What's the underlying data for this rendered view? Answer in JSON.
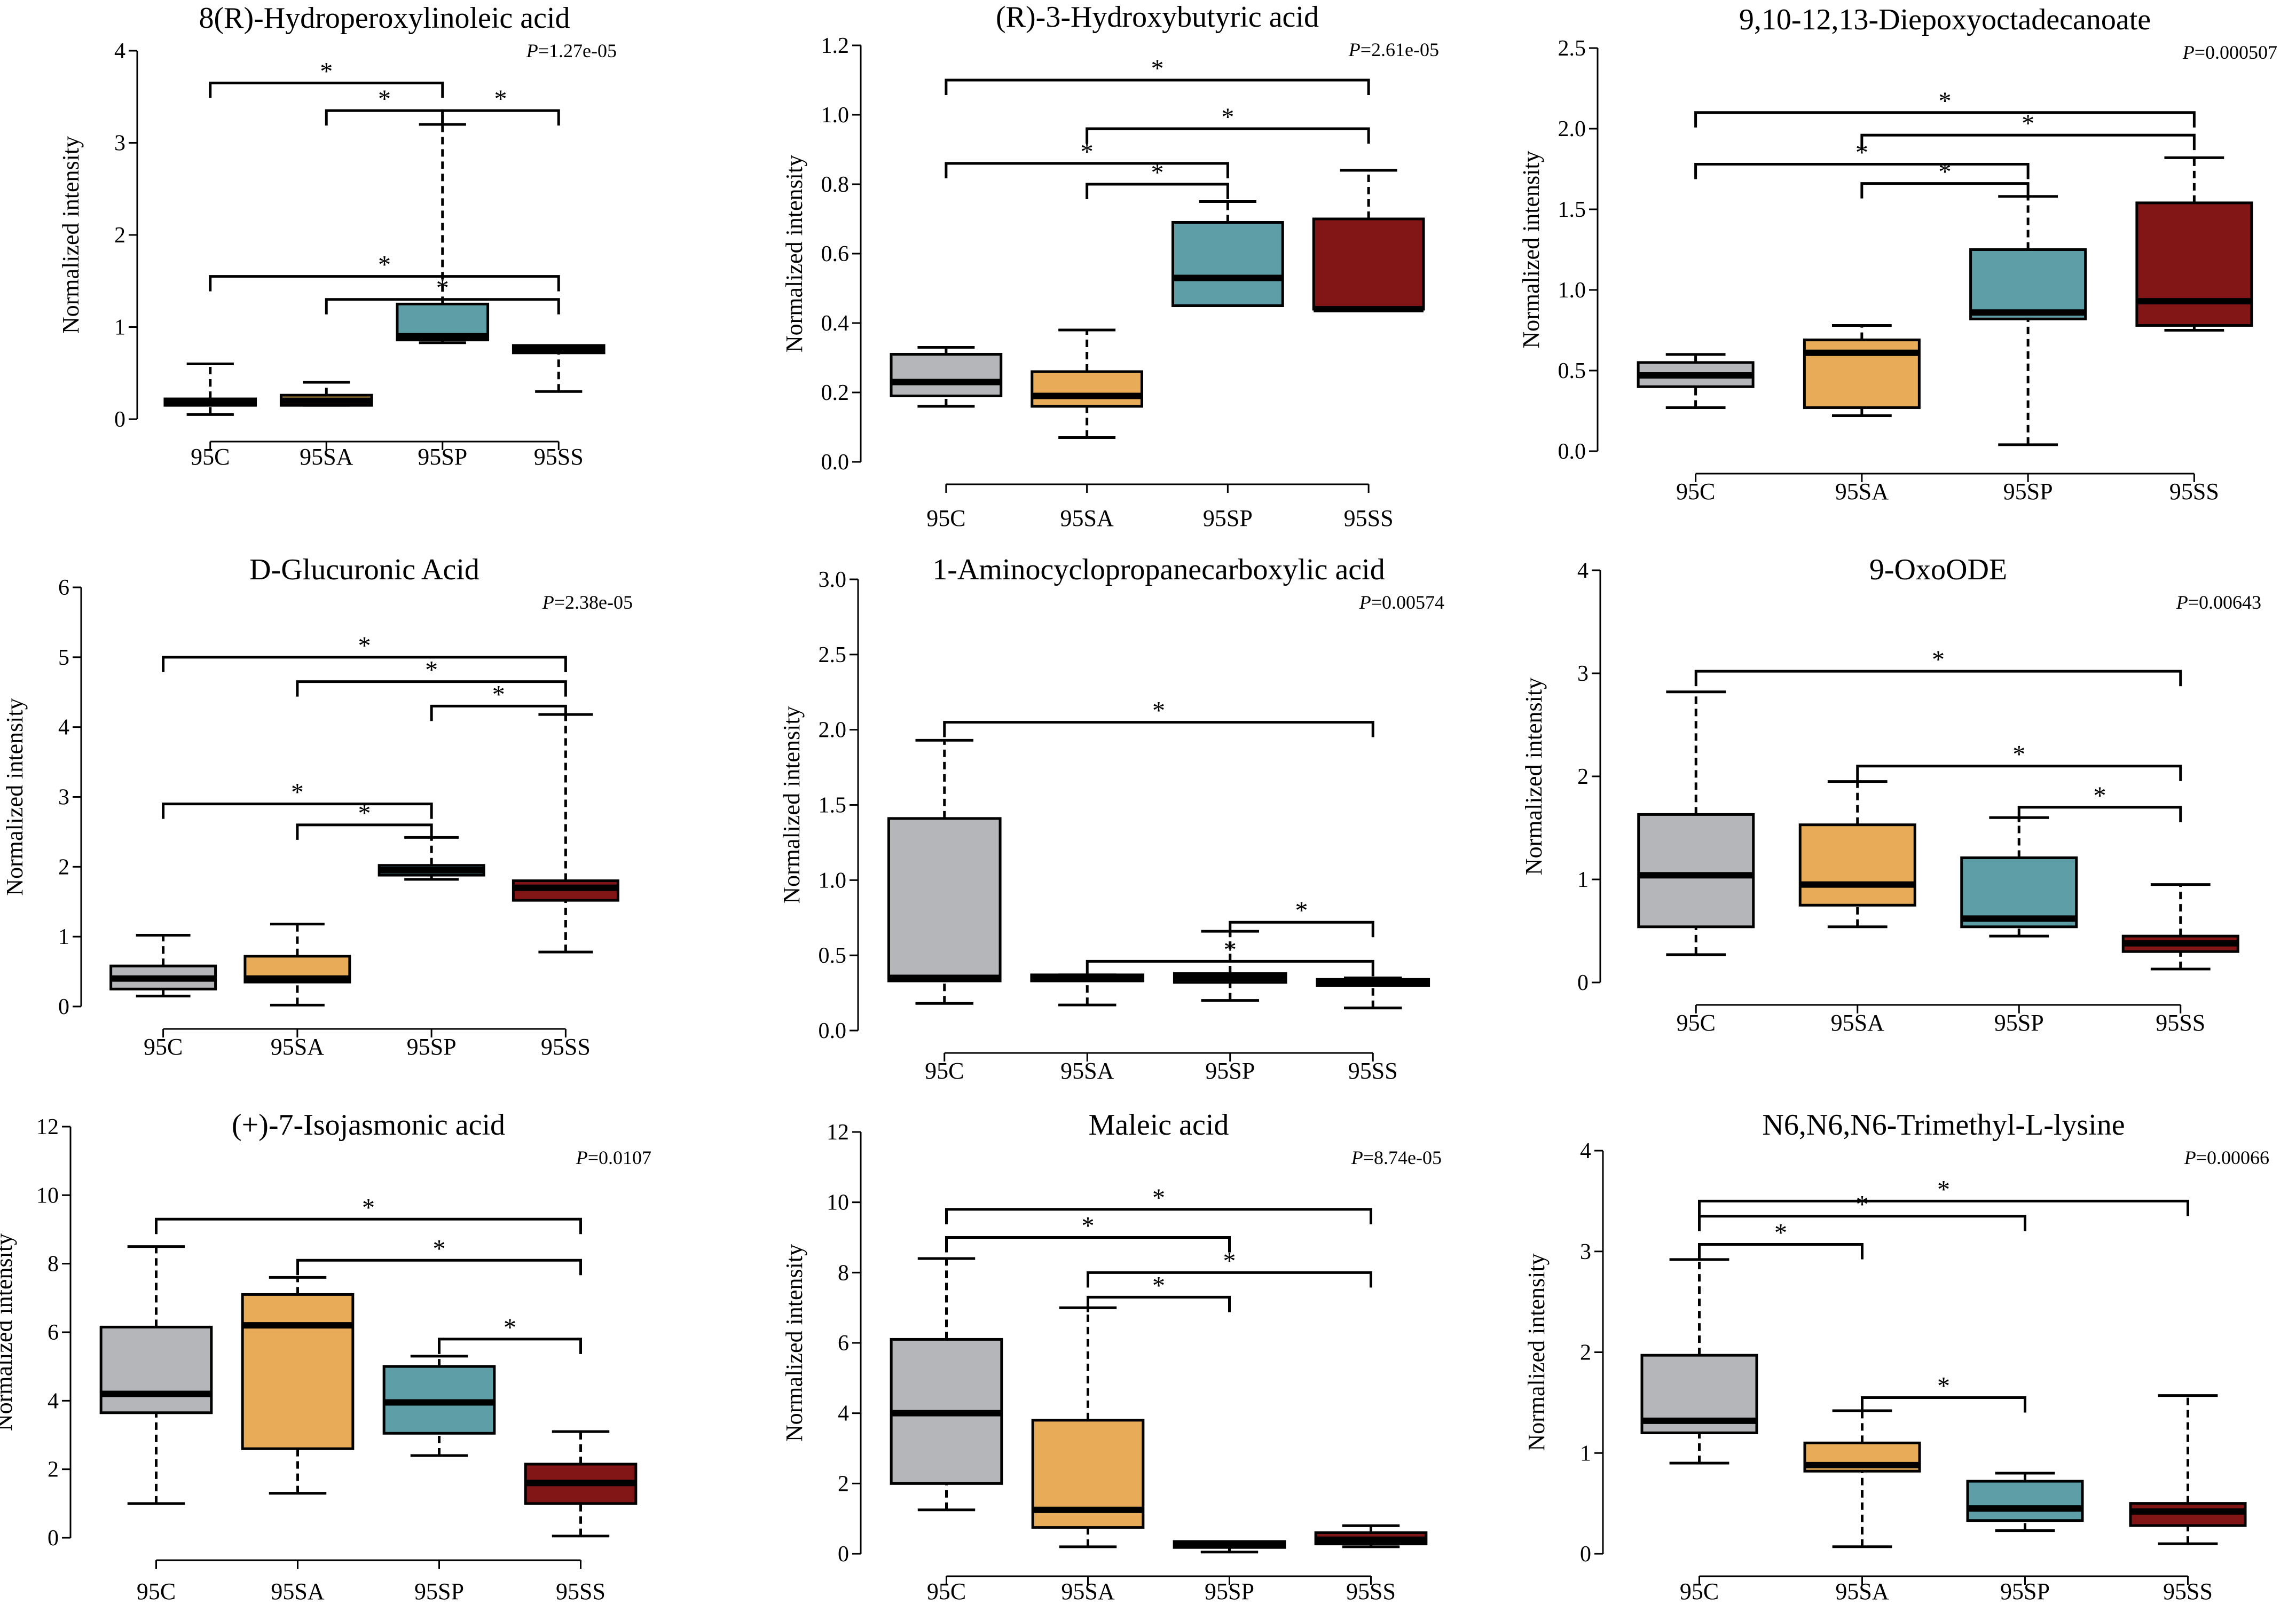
{
  "figure": {
    "groups": [
      "95C",
      "95SA",
      "95SP",
      "95SS"
    ],
    "colors": {
      "95C": "#b5b6ba",
      "95SA": "#e8ab57",
      "95SP": "#5e9ea6",
      "95SS": "#821617"
    },
    "ylabel": "Normalized intensity",
    "pvalue_prefix": "P"
  },
  "chart_data": [
    {
      "type": "box",
      "title": "8(R)-Hydroperoxylinoleic acid",
      "pvalue": "=1.27e-05",
      "ylabel": "Normalized intensity",
      "ylim": [
        0,
        4
      ],
      "yticks": [
        "0",
        "1",
        "2",
        "3",
        "4"
      ],
      "categories": [
        "95C",
        "95SA",
        "95SP",
        "95SS"
      ],
      "boxes": [
        {
          "min": 0.05,
          "q1": 0.15,
          "median": 0.19,
          "q3": 0.22,
          "max": 0.6
        },
        {
          "min": 0.15,
          "q1": 0.15,
          "median": 0.2,
          "q3": 0.26,
          "max": 0.4
        },
        {
          "min": 0.83,
          "q1": 0.86,
          "median": 0.9,
          "q3": 1.25,
          "max": 3.2
        },
        {
          "min": 0.3,
          "q1": 0.72,
          "median": 0.76,
          "q3": 0.8,
          "max": 0.8
        }
      ],
      "significance": [
        {
          "from": 0,
          "to": 2,
          "y": 3.65,
          "label": "*"
        },
        {
          "from": 1,
          "to": 2,
          "y": 3.35,
          "label": "*"
        },
        {
          "from": 2,
          "to": 3,
          "y": 3.35,
          "label": "*"
        },
        {
          "from": 0,
          "to": 3,
          "y": 1.55,
          "label": "*"
        },
        {
          "from": 1,
          "to": 3,
          "y": 1.3,
          "label": "*"
        }
      ]
    },
    {
      "type": "box",
      "title": "(R)-3-Hydroxybutyric acid",
      "pvalue": "=2.61e-05",
      "ylabel": "Normalized intensity",
      "ylim": [
        0,
        1.2
      ],
      "yticks": [
        "0.0",
        "0.2",
        "0.4",
        "0.6",
        "0.8",
        "1.0",
        "1.2"
      ],
      "categories": [
        "95C",
        "95SA",
        "95SP",
        "95SS"
      ],
      "boxes": [
        {
          "min": 0.16,
          "q1": 0.19,
          "median": 0.23,
          "q3": 0.31,
          "max": 0.33
        },
        {
          "min": 0.07,
          "q1": 0.16,
          "median": 0.19,
          "q3": 0.26,
          "max": 0.38
        },
        {
          "min": 0.45,
          "q1": 0.45,
          "median": 0.53,
          "q3": 0.69,
          "max": 0.75
        },
        {
          "min": 0.44,
          "q1": 0.44,
          "median": 0.44,
          "q3": 0.7,
          "max": 0.84
        }
      ],
      "significance": [
        {
          "from": 0,
          "to": 3,
          "y": 1.1,
          "label": "*"
        },
        {
          "from": 1,
          "to": 3,
          "y": 0.96,
          "label": "*"
        },
        {
          "from": 0,
          "to": 2,
          "y": 0.86,
          "label": "*"
        },
        {
          "from": 1,
          "to": 2,
          "y": 0.8,
          "label": "*"
        }
      ]
    },
    {
      "type": "box",
      "title": "9,10-12,13-Diepoxyoctadecanoate",
      "pvalue": "=0.000507",
      "ylabel": "Normalized intensity",
      "ylim": [
        0,
        2.5
      ],
      "yticks": [
        "0.0",
        "0.5",
        "1.0",
        "1.5",
        "2.0",
        "2.5"
      ],
      "categories": [
        "95C",
        "95SA",
        "95SP",
        "95SS"
      ],
      "boxes": [
        {
          "min": 0.27,
          "q1": 0.4,
          "median": 0.47,
          "q3": 0.55,
          "max": 0.6
        },
        {
          "min": 0.22,
          "q1": 0.27,
          "median": 0.61,
          "q3": 0.69,
          "max": 0.78
        },
        {
          "min": 0.04,
          "q1": 0.82,
          "median": 0.86,
          "q3": 1.25,
          "max": 1.58
        },
        {
          "min": 0.75,
          "q1": 0.78,
          "median": 0.93,
          "q3": 1.54,
          "max": 1.82
        }
      ],
      "significance": [
        {
          "from": 0,
          "to": 3,
          "y": 2.1,
          "label": "*"
        },
        {
          "from": 1,
          "to": 3,
          "y": 1.96,
          "label": "*"
        },
        {
          "from": 0,
          "to": 2,
          "y": 1.78,
          "label": "*"
        },
        {
          "from": 1,
          "to": 2,
          "y": 1.66,
          "label": "*"
        }
      ]
    },
    {
      "type": "box",
      "title": "D-Glucuronic Acid",
      "pvalue": "=2.38e-05",
      "ylabel": "Normalized intensity",
      "ylim": [
        0,
        6
      ],
      "yticks": [
        "0",
        "1",
        "2",
        "3",
        "4",
        "5",
        "6"
      ],
      "categories": [
        "95C",
        "95SA",
        "95SP",
        "95SS"
      ],
      "boxes": [
        {
          "min": 0.15,
          "q1": 0.25,
          "median": 0.4,
          "q3": 0.58,
          "max": 1.02
        },
        {
          "min": 0.02,
          "q1": 0.35,
          "median": 0.4,
          "q3": 0.72,
          "max": 1.18
        },
        {
          "min": 1.82,
          "q1": 1.88,
          "median": 1.95,
          "q3": 2.02,
          "max": 2.42
        },
        {
          "min": 0.78,
          "q1": 1.52,
          "median": 1.7,
          "q3": 1.8,
          "max": 4.18
        }
      ],
      "significance": [
        {
          "from": 0,
          "to": 3,
          "y": 5.0,
          "label": "*"
        },
        {
          "from": 1,
          "to": 3,
          "y": 4.65,
          "label": "*"
        },
        {
          "from": 2,
          "to": 3,
          "y": 4.3,
          "label": "*"
        },
        {
          "from": 0,
          "to": 2,
          "y": 2.9,
          "label": "*"
        },
        {
          "from": 1,
          "to": 2,
          "y": 2.6,
          "label": "*"
        }
      ]
    },
    {
      "type": "box",
      "title": "1-Aminocyclopropanecarboxylic acid",
      "pvalue": "=0.00574",
      "ylabel": "Normalized intensity",
      "ylim": [
        0,
        3.0
      ],
      "yticks": [
        "0.0",
        "0.5",
        "1.0",
        "1.5",
        "2.0",
        "2.5",
        "3.0"
      ],
      "categories": [
        "95C",
        "95SA",
        "95SP",
        "95SS"
      ],
      "boxes": [
        {
          "min": 0.18,
          "q1": 0.33,
          "median": 0.35,
          "q3": 1.41,
          "max": 1.93
        },
        {
          "min": 0.17,
          "q1": 0.33,
          "median": 0.35,
          "q3": 0.37,
          "max": 0.37
        },
        {
          "min": 0.2,
          "q1": 0.32,
          "median": 0.35,
          "q3": 0.38,
          "max": 0.66
        },
        {
          "min": 0.15,
          "q1": 0.3,
          "median": 0.32,
          "q3": 0.34,
          "max": 0.35
        }
      ],
      "significance": [
        {
          "from": 0,
          "to": 3,
          "y": 2.05,
          "label": "*"
        },
        {
          "from": 2,
          "to": 3,
          "y": 0.72,
          "label": "*"
        },
        {
          "from": 1,
          "to": 3,
          "y": 0.46,
          "label": "*"
        }
      ]
    },
    {
      "type": "box",
      "title": "9-OxoODE",
      "pvalue": "=0.00643",
      "ylabel": "Normalized intensity",
      "ylim": [
        0,
        4
      ],
      "yticks": [
        "0",
        "1",
        "2",
        "3",
        "4"
      ],
      "categories": [
        "95C",
        "95SA",
        "95SP",
        "95SS"
      ],
      "boxes": [
        {
          "min": 0.27,
          "q1": 0.54,
          "median": 1.04,
          "q3": 1.63,
          "max": 2.82
        },
        {
          "min": 0.54,
          "q1": 0.75,
          "median": 0.95,
          "q3": 1.53,
          "max": 1.95
        },
        {
          "min": 0.45,
          "q1": 0.54,
          "median": 0.62,
          "q3": 1.21,
          "max": 1.6
        },
        {
          "min": 0.13,
          "q1": 0.3,
          "median": 0.38,
          "q3": 0.45,
          "max": 0.95
        }
      ],
      "significance": [
        {
          "from": 0,
          "to": 3,
          "y": 3.02,
          "label": "*"
        },
        {
          "from": 1,
          "to": 3,
          "y": 2.1,
          "label": "*"
        },
        {
          "from": 2,
          "to": 3,
          "y": 1.7,
          "label": "*"
        }
      ]
    },
    {
      "type": "box",
      "title": "(+)-7-Isojasmonic acid",
      "pvalue": "=0.0107",
      "ylabel": "Normalized intensity",
      "ylim": [
        0,
        12
      ],
      "yticks": [
        "0",
        "2",
        "4",
        "6",
        "8",
        "10",
        "12"
      ],
      "categories": [
        "95C",
        "95SA",
        "95SP",
        "95SS"
      ],
      "boxes": [
        {
          "min": 1.0,
          "q1": 3.65,
          "median": 4.2,
          "q3": 6.15,
          "max": 8.5
        },
        {
          "min": 1.3,
          "q1": 2.6,
          "median": 6.2,
          "q3": 7.1,
          "max": 7.6
        },
        {
          "min": 2.4,
          "q1": 3.05,
          "median": 3.95,
          "q3": 5.0,
          "max": 5.3
        },
        {
          "min": 0.05,
          "q1": 1.0,
          "median": 1.6,
          "q3": 2.15,
          "max": 3.1
        }
      ],
      "significance": [
        {
          "from": 0,
          "to": 3,
          "y": 9.3,
          "label": "*"
        },
        {
          "from": 1,
          "to": 3,
          "y": 8.1,
          "label": "*"
        },
        {
          "from": 2,
          "to": 3,
          "y": 5.8,
          "label": "*"
        }
      ]
    },
    {
      "type": "box",
      "title": "Maleic acid",
      "pvalue": "=8.74e-05",
      "ylabel": "Normalized intensity",
      "ylim": [
        0,
        12
      ],
      "yticks": [
        "0",
        "2",
        "4",
        "6",
        "8",
        "10",
        "12"
      ],
      "categories": [
        "95C",
        "95SA",
        "95SP",
        "95SS"
      ],
      "boxes": [
        {
          "min": 1.25,
          "q1": 2.0,
          "median": 4.0,
          "q3": 6.1,
          "max": 8.4
        },
        {
          "min": 0.2,
          "q1": 0.75,
          "median": 1.25,
          "q3": 3.8,
          "max": 7.0
        },
        {
          "min": 0.05,
          "q1": 0.18,
          "median": 0.25,
          "q3": 0.35,
          "max": 0.35
        },
        {
          "min": 0.2,
          "q1": 0.28,
          "median": 0.4,
          "q3": 0.6,
          "max": 0.8
        }
      ],
      "significance": [
        {
          "from": 0,
          "to": 3,
          "y": 9.8,
          "label": "*"
        },
        {
          "from": 0,
          "to": 2,
          "y": 9.0,
          "label": "*"
        },
        {
          "from": 1,
          "to": 3,
          "y": 8.0,
          "label": "*"
        },
        {
          "from": 1,
          "to": 2,
          "y": 7.3,
          "label": "*"
        }
      ]
    },
    {
      "type": "box",
      "title": "N6,N6,N6-Trimethyl-L-lysine",
      "pvalue": "=0.00066",
      "ylabel": "Normalized intensity",
      "ylim": [
        0,
        4
      ],
      "yticks": [
        "0",
        "1",
        "2",
        "3",
        "4"
      ],
      "categories": [
        "95C",
        "95SA",
        "95SP",
        "95SS"
      ],
      "boxes": [
        {
          "min": 0.9,
          "q1": 1.2,
          "median": 1.32,
          "q3": 1.97,
          "max": 2.92
        },
        {
          "min": 0.07,
          "q1": 0.82,
          "median": 0.88,
          "q3": 1.1,
          "max": 1.42
        },
        {
          "min": 0.23,
          "q1": 0.33,
          "median": 0.45,
          "q3": 0.72,
          "max": 0.8
        },
        {
          "min": 0.1,
          "q1": 0.28,
          "median": 0.42,
          "q3": 0.5,
          "max": 1.57
        }
      ],
      "significance": [
        {
          "from": 0,
          "to": 3,
          "y": 3.5,
          "label": "*"
        },
        {
          "from": 0,
          "to": 2,
          "y": 3.35,
          "label": "*"
        },
        {
          "from": 0,
          "to": 1,
          "y": 3.07,
          "label": "*"
        },
        {
          "from": 1,
          "to": 2,
          "y": 1.55,
          "label": "*"
        }
      ]
    }
  ]
}
